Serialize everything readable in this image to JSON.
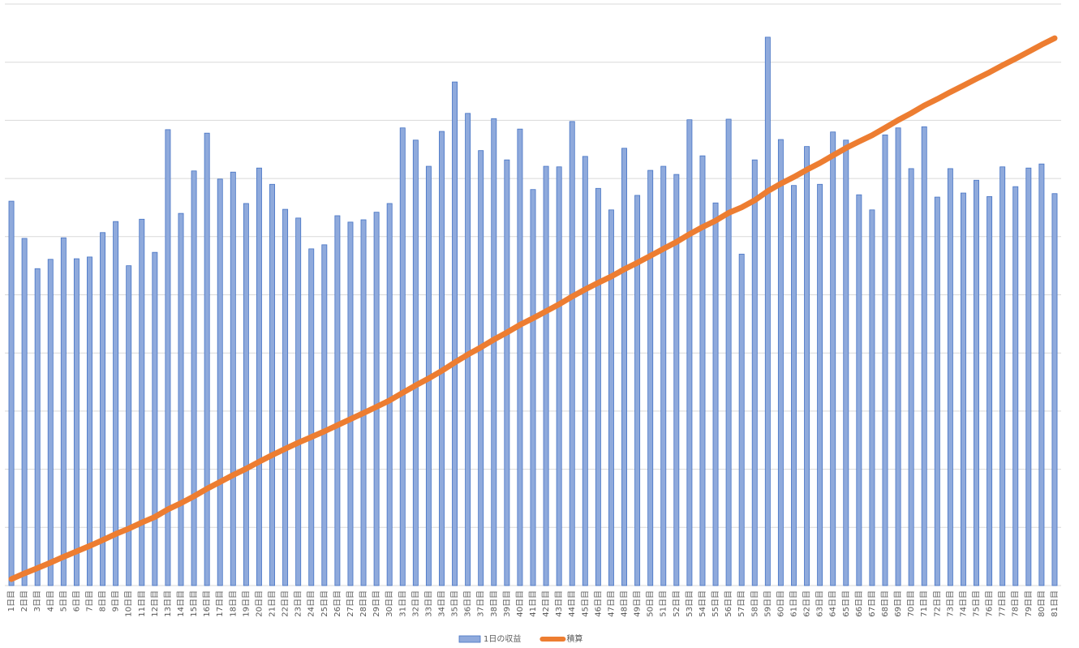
{
  "chart_data": {
    "type": "bar_line",
    "categories": [
      "1日目",
      "2日目",
      "3日目",
      "4日目",
      "5日目",
      "6日目",
      "7日目",
      "8日目",
      "9日目",
      "10日目",
      "11日目",
      "12日目",
      "13日目",
      "14日目",
      "15日目",
      "16日目",
      "17日目",
      "18日目",
      "19日目",
      "20日目",
      "21日目",
      "22日目",
      "23日目",
      "24日目",
      "25日目",
      "26日目",
      "27日目",
      "28日目",
      "29日目",
      "30日目",
      "31日目",
      "32日目",
      "33日目",
      "34日目",
      "35日目",
      "36日目",
      "37日目",
      "38日目",
      "39日目",
      "40日目",
      "41日目",
      "42日目",
      "43日目",
      "44日目",
      "45日目",
      "46日目",
      "47日目",
      "48日目",
      "49日目",
      "50日目",
      "51日目",
      "52日目",
      "53日目",
      "54日目",
      "55日目",
      "56日目",
      "57日目",
      "58日目",
      "59日目",
      "60日目",
      "61日目",
      "62日目",
      "63日目",
      "64日目",
      "65日目",
      "66日目",
      "67日目",
      "68日目",
      "69日目",
      "70日目",
      "71日目",
      "72日目",
      "73日目",
      "74日目",
      "75日目",
      "76日目",
      "77日目",
      "78日目",
      "79日目",
      "80日目",
      "81日目"
    ],
    "series": [
      {
        "name": "1日の収益",
        "kind": "bar",
        "color": "#8faadc",
        "edge": "#4472c4",
        "values": [
          6.61,
          5.97,
          5.45,
          5.61,
          5.98,
          5.62,
          5.65,
          6.07,
          6.26,
          5.5,
          6.3,
          5.73,
          7.84,
          6.4,
          7.13,
          7.78,
          6.99,
          7.11,
          6.57,
          7.18,
          6.9,
          6.47,
          6.32,
          5.79,
          5.86,
          6.36,
          6.25,
          6.29,
          6.42,
          6.57,
          7.87,
          7.66,
          7.21,
          7.81,
          8.66,
          8.12,
          7.48,
          8.03,
          7.32,
          7.85,
          6.81,
          7.21,
          7.2,
          7.98,
          7.38,
          6.83,
          6.46,
          7.52,
          6.71,
          7.14,
          7.21,
          7.07,
          8.01,
          7.39,
          6.58,
          8.02,
          5.7,
          7.32,
          9.43,
          7.67,
          6.88,
          7.55,
          6.9,
          7.8,
          7.66,
          6.72,
          6.46,
          7.75,
          7.87,
          7.17,
          7.89,
          6.68,
          7.17,
          6.75,
          6.97,
          6.69,
          7.2,
          6.86,
          7.18,
          7.25,
          6.74
        ]
      },
      {
        "name": "積算",
        "kind": "line",
        "axis": "y2",
        "color": "#ed7d31",
        "values": [
          6.61,
          12.58,
          18.03,
          23.64,
          29.62,
          35.24,
          40.89,
          46.96,
          53.22,
          58.72,
          65.02,
          70.75,
          78.59,
          84.99,
          92.12,
          99.9,
          106.89,
          114.0,
          120.57,
          127.75,
          134.65,
          141.12,
          147.44,
          153.23,
          159.09,
          165.45,
          171.7,
          177.99,
          184.41,
          190.98,
          198.85,
          206.51,
          213.72,
          221.53,
          230.19,
          238.31,
          245.79,
          253.82,
          261.14,
          268.99,
          275.8,
          283.01,
          290.21,
          298.19,
          305.57,
          312.4,
          318.86,
          326.38,
          333.09,
          340.23,
          347.44,
          354.51,
          362.52,
          369.91,
          376.49,
          384.51,
          390.21,
          397.53,
          406.96,
          414.63,
          421.51,
          429.06,
          435.96,
          443.76,
          451.42,
          458.14,
          464.6,
          472.35,
          480.22,
          487.39,
          495.28,
          501.96,
          509.13,
          515.88,
          522.85,
          529.54,
          536.74,
          543.6,
          550.78,
          558.03,
          564.77
        ]
      }
    ],
    "ylim": [
      0,
      10
    ],
    "yticks": [
      0,
      1,
      2,
      3,
      4,
      5,
      6,
      7,
      8,
      9,
      10
    ],
    "ytick_labels": false,
    "y2lim": [
      0,
      600
    ],
    "grid": true,
    "legend": "bottom"
  }
}
